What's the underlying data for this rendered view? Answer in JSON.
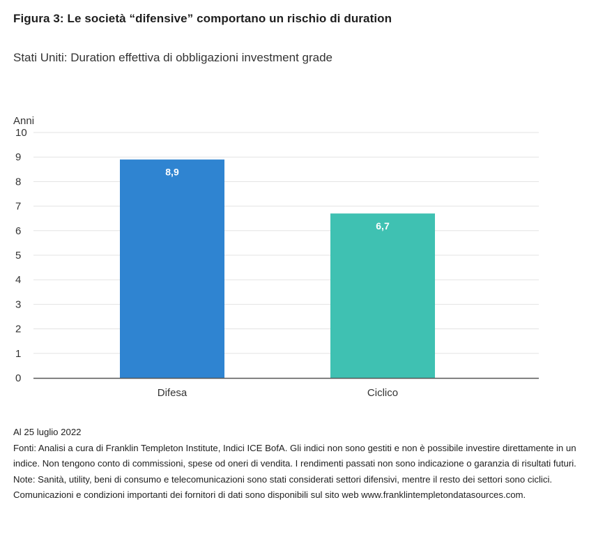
{
  "title": "Figura 3: Le società “difensive” comportano un rischio di duration",
  "subtitle": "Stati Uniti: Duration effettiva di obbligazioni investment grade",
  "chart_data": {
    "type": "bar",
    "title": "Figura 3: Le società “difensive” comportano un rischio di duration",
    "subtitle": "Stati Uniti: Duration effettiva di obbligazioni investment grade",
    "xlabel": "",
    "ylabel": "Anni",
    "ylim": [
      0,
      10
    ],
    "yticks": [
      0,
      1,
      2,
      3,
      4,
      5,
      6,
      7,
      8,
      9,
      10
    ],
    "categories": [
      "Difesa",
      "Ciclico"
    ],
    "values": [
      8.9,
      6.7
    ],
    "value_labels": [
      "8,9",
      "6,7"
    ],
    "colors": [
      "#2f84d1",
      "#3fc1b2"
    ],
    "grid": true,
    "legend": "none"
  },
  "notes": {
    "date": "Al 25 luglio 2022",
    "sources": "Fonti: Analisi a cura di Franklin Templeton Institute, Indici ICE BofA. Gli indici non sono gestiti e non è possibile investire direttamente in un indice. Non tengono conto di commissioni, spese od oneri di vendita. I rendimenti passati non sono indicazione o garanzia di risultati futuri.",
    "note": "Note: Sanità, utility, beni di consumo e telecomunicazioni sono stati considerati settori difensivi, mentre il resto dei settori sono ciclici.",
    "providers": "Comunicazioni e condizioni importanti dei fornitori di dati sono disponibili sul sito web www.franklintempletondatasources.com."
  }
}
